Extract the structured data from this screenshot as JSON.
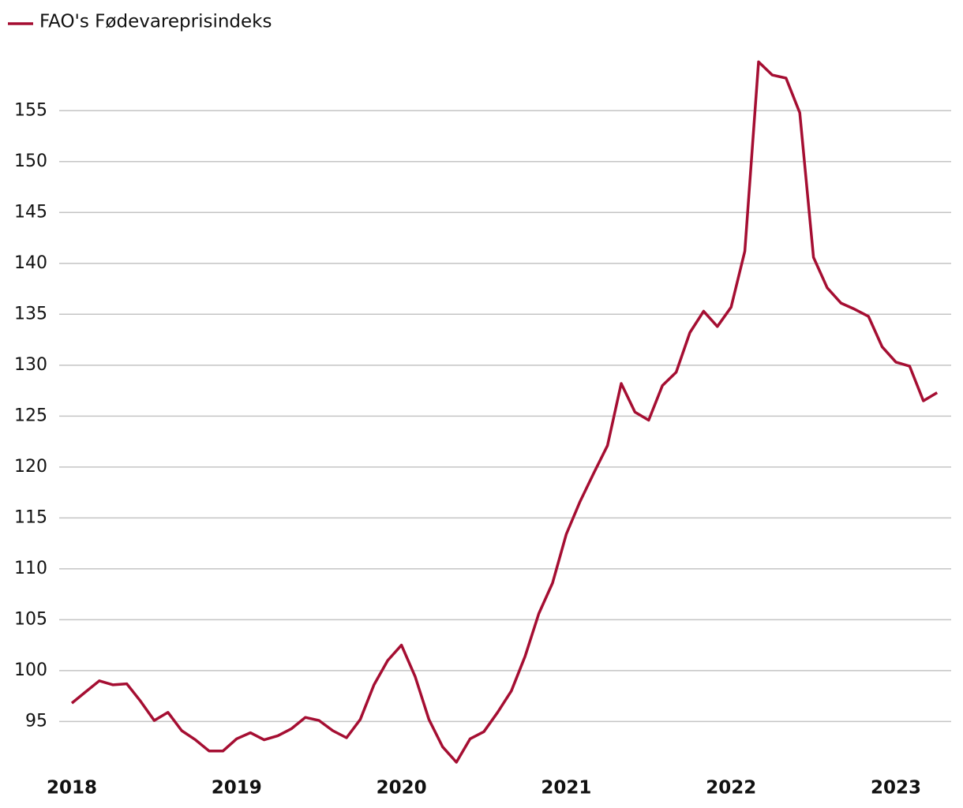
{
  "chart_data": {
    "type": "line",
    "categories": [
      "2018",
      null,
      null,
      null,
      null,
      null,
      null,
      null,
      null,
      null,
      null,
      null,
      "2019",
      null,
      null,
      null,
      null,
      null,
      null,
      null,
      null,
      null,
      null,
      null,
      "2020",
      null,
      null,
      null,
      null,
      null,
      null,
      null,
      null,
      null,
      null,
      null,
      "2021",
      null,
      null,
      null,
      null,
      null,
      null,
      null,
      null,
      null,
      null,
      null,
      "2022",
      null,
      null,
      null,
      null,
      null,
      null,
      null,
      null,
      null,
      null,
      null,
      "2023",
      null,
      null,
      null
    ],
    "series": [
      {
        "name": "FAO's Fødevareprisindeks",
        "color": "#a50e32",
        "values": [
          96.8,
          97.9,
          99.0,
          98.6,
          98.7,
          97.0,
          95.1,
          95.9,
          94.1,
          93.2,
          92.1,
          92.1,
          93.3,
          93.9,
          93.2,
          93.6,
          94.3,
          95.4,
          95.1,
          94.1,
          93.4,
          95.2,
          98.6,
          101.0,
          102.5,
          99.4,
          95.2,
          92.5,
          91.0,
          93.3,
          94.0,
          95.9,
          98.0,
          101.4,
          105.6,
          108.6,
          113.4,
          116.6,
          119.4,
          122.1,
          128.2,
          125.4,
          124.6,
          128.0,
          129.3,
          133.2,
          135.3,
          133.8,
          135.7,
          141.2,
          159.8,
          158.5,
          158.2,
          154.8,
          140.6,
          137.6,
          136.1,
          135.5,
          134.8,
          131.8,
          130.3,
          129.9,
          126.5,
          127.3
        ]
      }
    ],
    "ylim": [
      90.3,
      161.3
    ],
    "yticks": [
      95,
      100,
      105,
      110,
      115,
      120,
      125,
      130,
      135,
      140,
      145,
      150,
      155
    ],
    "grid": true,
    "legend": "top-left"
  }
}
